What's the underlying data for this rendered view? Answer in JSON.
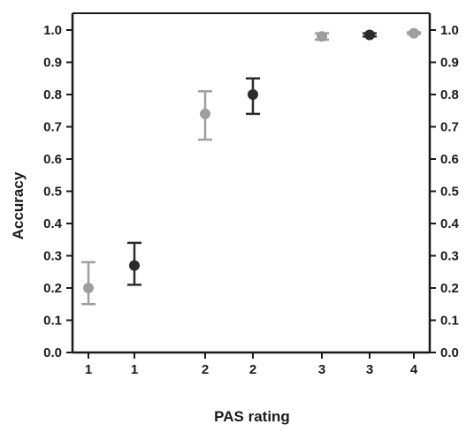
{
  "chart_data": {
    "type": "scatter",
    "title": "",
    "xlabel": "PAS rating",
    "ylabel": "Accuracy",
    "ylim": [
      0,
      1
    ],
    "yticks": [
      "0.0",
      "0.1",
      "0.2",
      "0.3",
      "0.4",
      "0.5",
      "0.6",
      "0.7",
      "0.8",
      "0.9",
      "1.0"
    ],
    "categories": [
      "1",
      "1",
      "2",
      "2",
      "3",
      "3",
      "4"
    ],
    "grid": false,
    "legend": "none",
    "right_axis_mirrored": true,
    "colors": {
      "light": "#9e9e9e",
      "dark": "#2b2b2b",
      "axis": "#1a1a1a"
    },
    "points": [
      {
        "category_index": 0,
        "y": 0.2,
        "err_low": 0.15,
        "err_high": 0.28,
        "color": "light"
      },
      {
        "category_index": 1,
        "y": 0.27,
        "err_low": 0.21,
        "err_high": 0.34,
        "color": "dark"
      },
      {
        "category_index": 2,
        "y": 0.74,
        "err_low": 0.66,
        "err_high": 0.81,
        "color": "light"
      },
      {
        "category_index": 3,
        "y": 0.8,
        "err_low": 0.74,
        "err_high": 0.85,
        "color": "dark"
      },
      {
        "category_index": 4,
        "y": 0.98,
        "err_low": 0.97,
        "err_high": 0.99,
        "color": "light"
      },
      {
        "category_index": 5,
        "y": 0.985,
        "err_low": 0.98,
        "err_high": 0.99,
        "color": "dark"
      },
      {
        "category_index": 6,
        "y": 0.99,
        "err_low": 0.988,
        "err_high": 0.993,
        "color": "light"
      }
    ]
  }
}
